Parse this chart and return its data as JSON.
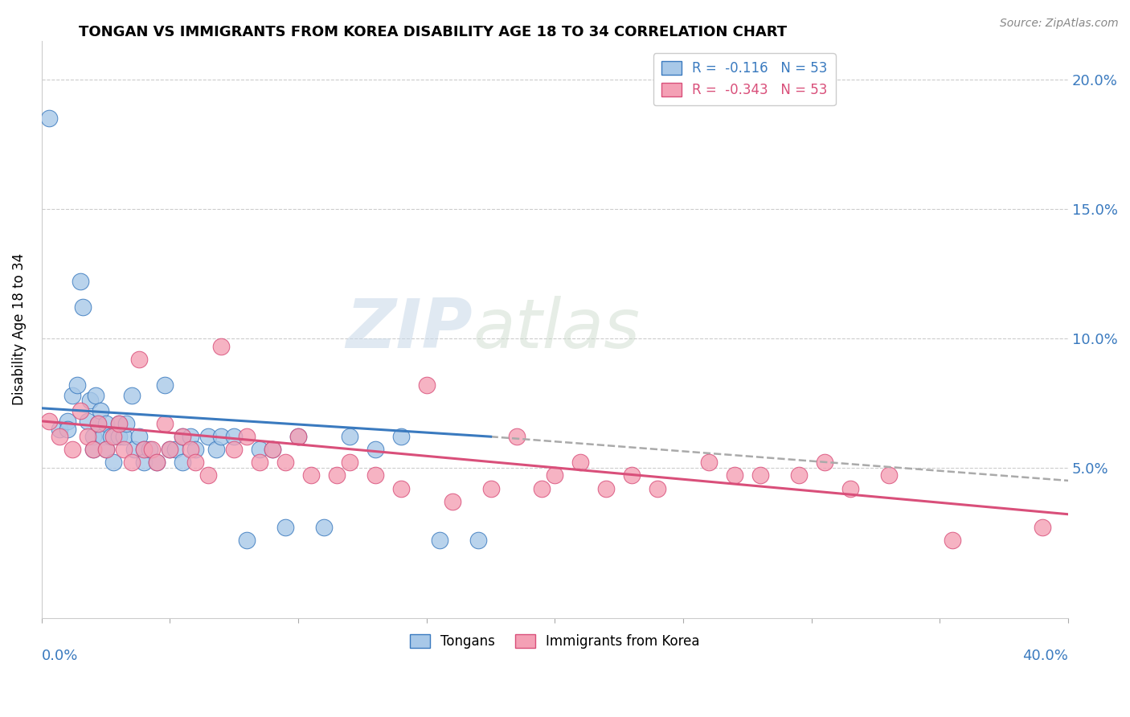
{
  "title": "TONGAN VS IMMIGRANTS FROM KOREA DISABILITY AGE 18 TO 34 CORRELATION CHART",
  "source": "Source: ZipAtlas.com",
  "ylabel": "Disability Age 18 to 34",
  "legend_blue_label": "Tongans",
  "legend_pink_label": "Immigrants from Korea",
  "r_blue": "-0.116",
  "n_blue": "53",
  "r_pink": "-0.343",
  "n_pink": "53",
  "y_ticks": [
    0.0,
    0.05,
    0.1,
    0.15,
    0.2
  ],
  "y_tick_labels": [
    "",
    "5.0%",
    "10.0%",
    "15.0%",
    "20.0%"
  ],
  "x_range": [
    0.0,
    0.4
  ],
  "y_range": [
    -0.008,
    0.215
  ],
  "blue_color": "#a8c8e8",
  "pink_color": "#f4a0b5",
  "blue_line_color": "#3a7abf",
  "pink_line_color": "#d94f7a",
  "dash_line_color": "#aaaaaa",
  "watermark_zip": "ZIP",
  "watermark_atlas": "atlas",
  "tongans_x": [
    0.003,
    0.007,
    0.01,
    0.01,
    0.012,
    0.014,
    0.015,
    0.016,
    0.018,
    0.019,
    0.02,
    0.02,
    0.021,
    0.022,
    0.023,
    0.024,
    0.025,
    0.025,
    0.027,
    0.028,
    0.03,
    0.03,
    0.032,
    0.033,
    0.035,
    0.036,
    0.038,
    0.04,
    0.04,
    0.042,
    0.045,
    0.048,
    0.05,
    0.052,
    0.055,
    0.055,
    0.058,
    0.06,
    0.065,
    0.068,
    0.07,
    0.075,
    0.08,
    0.085,
    0.09,
    0.095,
    0.1,
    0.11,
    0.12,
    0.13,
    0.14,
    0.155,
    0.17
  ],
  "tongans_y": [
    0.185,
    0.065,
    0.068,
    0.065,
    0.078,
    0.082,
    0.122,
    0.112,
    0.068,
    0.076,
    0.062,
    0.057,
    0.078,
    0.067,
    0.072,
    0.062,
    0.067,
    0.057,
    0.062,
    0.052,
    0.067,
    0.062,
    0.062,
    0.067,
    0.078,
    0.057,
    0.062,
    0.057,
    0.052,
    0.057,
    0.052,
    0.082,
    0.057,
    0.057,
    0.052,
    0.062,
    0.062,
    0.057,
    0.062,
    0.057,
    0.062,
    0.062,
    0.022,
    0.057,
    0.057,
    0.027,
    0.062,
    0.027,
    0.062,
    0.057,
    0.062,
    0.022,
    0.022
  ],
  "korea_x": [
    0.003,
    0.007,
    0.012,
    0.015,
    0.018,
    0.02,
    0.022,
    0.025,
    0.028,
    0.03,
    0.032,
    0.035,
    0.038,
    0.04,
    0.043,
    0.045,
    0.048,
    0.05,
    0.055,
    0.058,
    0.06,
    0.065,
    0.07,
    0.075,
    0.08,
    0.085,
    0.09,
    0.095,
    0.1,
    0.105,
    0.115,
    0.12,
    0.13,
    0.14,
    0.15,
    0.16,
    0.175,
    0.185,
    0.195,
    0.2,
    0.21,
    0.22,
    0.23,
    0.24,
    0.26,
    0.27,
    0.28,
    0.295,
    0.305,
    0.315,
    0.33,
    0.355,
    0.39
  ],
  "korea_y": [
    0.068,
    0.062,
    0.057,
    0.072,
    0.062,
    0.057,
    0.067,
    0.057,
    0.062,
    0.067,
    0.057,
    0.052,
    0.092,
    0.057,
    0.057,
    0.052,
    0.067,
    0.057,
    0.062,
    0.057,
    0.052,
    0.047,
    0.097,
    0.057,
    0.062,
    0.052,
    0.057,
    0.052,
    0.062,
    0.047,
    0.047,
    0.052,
    0.047,
    0.042,
    0.082,
    0.037,
    0.042,
    0.062,
    0.042,
    0.047,
    0.052,
    0.042,
    0.047,
    0.042,
    0.052,
    0.047,
    0.047,
    0.047,
    0.052,
    0.042,
    0.047,
    0.022,
    0.027
  ],
  "blue_line_x_start": 0.0,
  "blue_line_x_end": 0.175,
  "blue_line_y_start": 0.073,
  "blue_line_y_end": 0.062,
  "dash_line_x_start": 0.175,
  "dash_line_x_end": 0.4,
  "dash_line_y_start": 0.062,
  "dash_line_y_end": 0.045,
  "pink_line_x_start": 0.0,
  "pink_line_x_end": 0.4,
  "pink_line_y_start": 0.068,
  "pink_line_y_end": 0.032
}
